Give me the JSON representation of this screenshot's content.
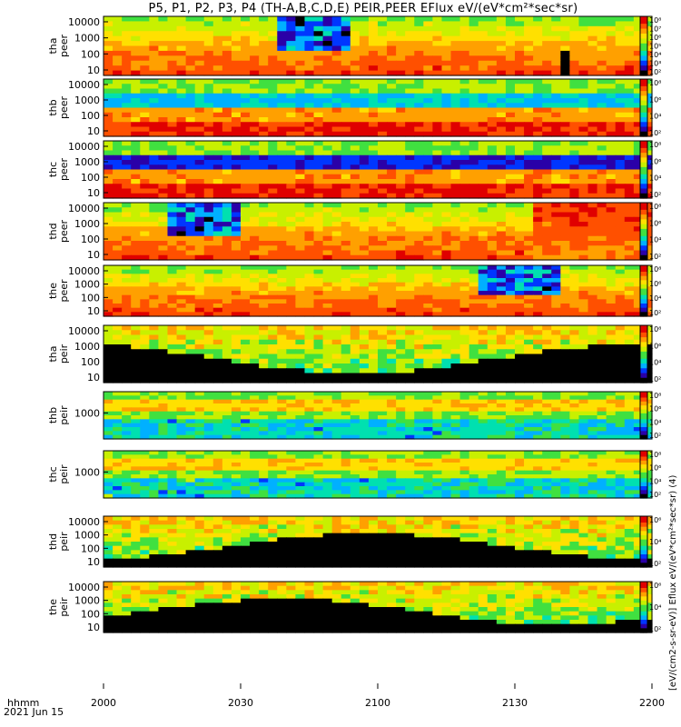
{
  "title": "P5, P1, P2, P3, P4 (TH-A,B,C,D,E) PEIR,PEER EFlux eV/(eV*cm²*sec*sr)",
  "footer": {
    "hhmm": "hhmm",
    "date": "2021 Jun 15"
  },
  "units_label": "[eV/(cm2-s-sr-eV)] Eflux eV/(eV*cm²*sec*sr) (4)",
  "chart_data": {
    "type": "heatmap",
    "x_axis": {
      "tick_labels": [
        "2000",
        "2030",
        "2100",
        "2130",
        "2200"
      ],
      "range": [
        "2000",
        "2200"
      ]
    },
    "panels": [
      {
        "probe": "tha",
        "species": "peer",
        "ylabel": "tha\npeer",
        "yticks": [
          "10000",
          "1000",
          "100",
          "10"
        ],
        "colorbar_ticks": [
          "10⁸",
          "10⁷",
          "10⁶",
          "10⁵",
          "10⁴",
          "10³",
          "10²"
        ]
      },
      {
        "probe": "thb",
        "species": "peer",
        "ylabel": "thb\npeer",
        "yticks": [
          "10000",
          "1000",
          "100",
          "10"
        ],
        "colorbar_ticks": [
          "10⁸",
          "10⁶",
          "10⁴",
          "10²"
        ]
      },
      {
        "probe": "thc",
        "species": "peer",
        "ylabel": "thc\npeer",
        "yticks": [
          "10000",
          "1000",
          "100",
          "10"
        ],
        "colorbar_ticks": [
          "10⁸",
          "10⁶",
          "10⁴",
          "10²"
        ]
      },
      {
        "probe": "thd",
        "species": "peer",
        "ylabel": "thd\npeer",
        "yticks": [
          "10000",
          "1000",
          "100",
          "10"
        ],
        "colorbar_ticks": [
          "10⁸",
          "10⁶",
          "10⁴",
          "10²"
        ]
      },
      {
        "probe": "the",
        "species": "peer",
        "ylabel": "the\npeer",
        "yticks": [
          "10000",
          "1000",
          "100",
          "10"
        ],
        "colorbar_ticks": [
          "10⁸",
          "10⁶",
          "10⁴",
          "10²"
        ]
      },
      {
        "probe": "tha",
        "species": "peir",
        "ylabel": "tha\npeir",
        "yticks": [
          "10000",
          "1000",
          "100",
          "10"
        ],
        "colorbar_ticks": [
          "10⁸",
          "10⁶",
          "10⁴",
          "10²"
        ]
      },
      {
        "probe": "thb",
        "species": "peir",
        "ylabel": "thb\npeir",
        "yticks": [
          "1000"
        ],
        "colorbar_ticks": [
          "10⁸",
          "10⁶",
          "10⁴",
          "10²"
        ]
      },
      {
        "probe": "thc",
        "species": "peir",
        "ylabel": "thc\npeir",
        "yticks": [
          "1000"
        ],
        "colorbar_ticks": [
          "10⁸",
          "10⁶",
          "10⁴",
          "10²"
        ]
      },
      {
        "probe": "thd",
        "species": "peir",
        "ylabel": "thd\npeir",
        "yticks": [
          "10000",
          "1000",
          "100",
          "10"
        ],
        "colorbar_ticks": [
          "10⁶",
          "10⁴",
          "10²"
        ]
      },
      {
        "probe": "the",
        "species": "peir",
        "ylabel": "the\npeir",
        "yticks": [
          "10000",
          "1000",
          "100",
          "10"
        ],
        "colorbar_ticks": [
          "10⁶",
          "10⁴",
          "10²"
        ]
      }
    ],
    "colormap": [
      "#000000",
      "#2a00a8",
      "#0036ff",
      "#00b0ff",
      "#00e0b0",
      "#40e040",
      "#c8f000",
      "#ffe000",
      "#ffa000",
      "#ff5000",
      "#e00000"
    ]
  }
}
